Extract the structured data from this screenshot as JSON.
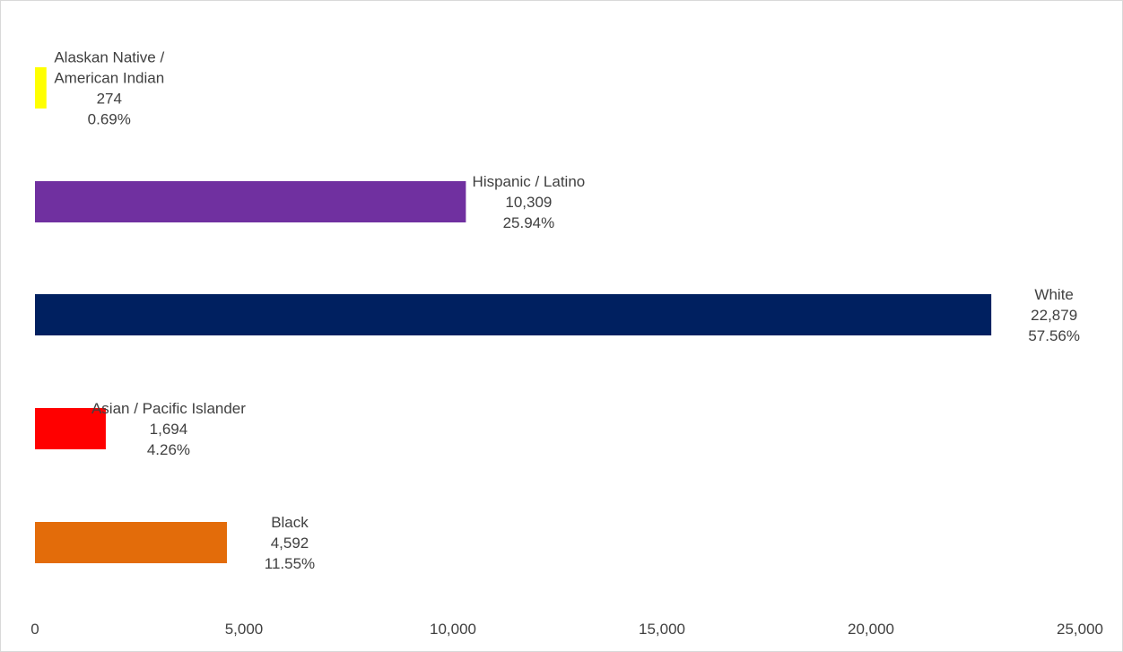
{
  "chart_data": {
    "type": "bar",
    "orientation": "horizontal",
    "title": "",
    "xlabel": "",
    "ylabel": "",
    "xlim": [
      0,
      25000
    ],
    "x_ticks": [
      0,
      5000,
      10000,
      15000,
      20000,
      25000
    ],
    "x_tick_labels": [
      "0",
      "5,000",
      "10,000",
      "15,000",
      "20,000",
      "25,000"
    ],
    "grid": false,
    "legend": "none",
    "categories": [
      "Alaskan Native / American Indian",
      "Hispanic / Latino",
      "White",
      "Asian / Pacific Islander",
      "Black"
    ],
    "values": [
      274,
      10309,
      22879,
      1694,
      4592
    ],
    "value_labels": [
      "274",
      "10,309",
      "22,879",
      "1,694",
      "4,592"
    ],
    "percent_labels": [
      "0.69%",
      "25.94%",
      "57.56%",
      "4.26%",
      "11.55%"
    ],
    "category_label_lines": [
      [
        "Alaskan Native /",
        "American Indian"
      ],
      [
        "Hispanic / Latino"
      ],
      [
        "White"
      ],
      [
        "Asian / Pacific Islander"
      ],
      [
        "Black"
      ]
    ],
    "colors": [
      "#FFFF00",
      "#7030A0",
      "#002060",
      "#FF0000",
      "#E36C0A"
    ]
  }
}
